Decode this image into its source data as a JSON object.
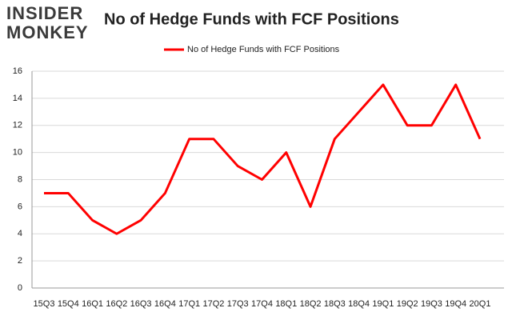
{
  "logo": {
    "line1": "INSIDER",
    "line2": "MONKEY"
  },
  "chart_data": {
    "type": "line",
    "title": "No of Hedge Funds with FCF Positions",
    "categories": [
      "15Q3",
      "15Q4",
      "16Q1",
      "16Q2",
      "16Q3",
      "16Q4",
      "17Q1",
      "17Q2",
      "17Q3",
      "17Q4",
      "18Q1",
      "18Q2",
      "18Q3",
      "18Q4",
      "19Q1",
      "19Q2",
      "19Q3",
      "19Q4",
      "20Q1"
    ],
    "series": [
      {
        "name": "No of Hedge Funds with FCF Positions",
        "color": "#ff0000",
        "values": [
          7,
          7,
          5,
          4,
          5,
          7,
          11,
          11,
          9,
          8,
          10,
          6,
          11,
          13,
          15,
          12,
          12,
          15,
          11
        ]
      }
    ],
    "ylim": [
      0,
      16
    ],
    "yticks": [
      0,
      2,
      4,
      6,
      8,
      10,
      12,
      14,
      16
    ],
    "grid": true,
    "legend": "top"
  }
}
